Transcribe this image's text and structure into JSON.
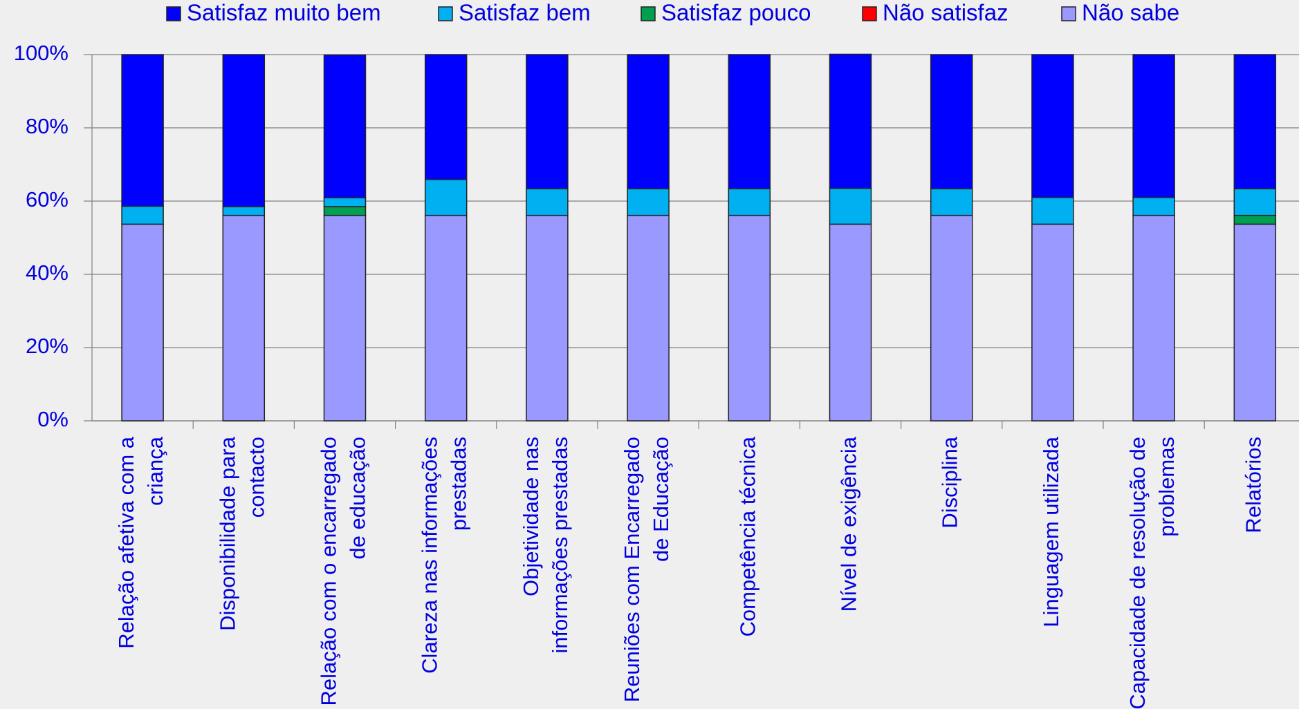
{
  "chart_data": {
    "type": "stacked_bar",
    "categories": [
      "Relação afetiva com a criança",
      "Disponibilidade para contacto",
      "Relação com o encarregado de educação",
      "Clareza nas informações prestadas",
      "Objetividade nas informações prestadas",
      "Reuniões com Encarregado de Educação",
      "Competência técnica",
      "Nível de exigência",
      "Disciplina",
      "Linguagem utilizada",
      "Capacidade de resolução de problemas",
      "Relatórios"
    ],
    "series": [
      {
        "name": "Satisfaz muito bem",
        "color": "#0000ff",
        "values": [
          41.4,
          41.5,
          39.0,
          34.1,
          36.6,
          36.6,
          36.6,
          36.6,
          36.6,
          39.0,
          39.0,
          36.6
        ]
      },
      {
        "name": "Satisfaz bem",
        "color": "#00b0f0",
        "values": [
          4.9,
          2.4,
          2.4,
          9.8,
          7.3,
          7.3,
          7.3,
          9.8,
          7.3,
          7.3,
          4.9,
          7.3
        ]
      },
      {
        "name": "Satisfaz pouco",
        "color": "#00a050",
        "values": [
          0,
          0,
          2.4,
          0,
          0,
          0,
          0,
          0,
          0,
          0,
          0,
          2.4
        ]
      },
      {
        "name": "Não satisfaz",
        "color": "#ff0000",
        "values": [
          0,
          0,
          0,
          0,
          0,
          0,
          0,
          0,
          0,
          0,
          0,
          0
        ]
      },
      {
        "name": "Não sabe",
        "color": "#9999ff",
        "values": [
          53.7,
          56.1,
          56.1,
          56.1,
          56.1,
          56.1,
          56.1,
          53.7,
          56.1,
          53.7,
          56.1,
          53.7
        ]
      }
    ],
    "ylim": [
      0,
      100
    ],
    "yticks": [
      {
        "value": 0,
        "label": "0%"
      },
      {
        "value": 20,
        "label": "20%"
      },
      {
        "value": 40,
        "label": "40%"
      },
      {
        "value": 60,
        "label": "60%"
      },
      {
        "value": 80,
        "label": "80%"
      },
      {
        "value": 100,
        "label": "100%"
      }
    ],
    "grid": true,
    "legend": "top"
  }
}
